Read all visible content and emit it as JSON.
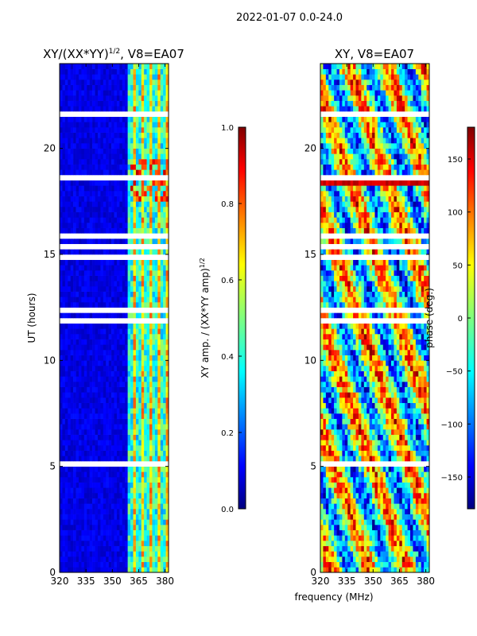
{
  "figure": {
    "suptitle": "2022-01-07 0.0-24.0",
    "shared_xlabel": "frequency (MHz)"
  },
  "chart_data": [
    {
      "type": "heatmap",
      "title_main": "XY/(XX*YY)",
      "title_sup": "1/2",
      "title_tail": ", V8=EA07",
      "xlabel": "frequency (MHz)",
      "ylabel": "UT (hours)",
      "xlim": [
        320,
        382
      ],
      "ylim": [
        0,
        24
      ],
      "xticks": [
        320,
        335,
        350,
        365,
        380
      ],
      "yticks": [
        0,
        5,
        10,
        15,
        20
      ],
      "colorbar": {
        "label_main": "XY amp. / (XX*YY amp)",
        "label_sup": "1/2",
        "range": [
          0.0,
          1.0
        ],
        "ticks": [
          "0.0",
          "0.2",
          "0.4",
          "0.6",
          "0.8",
          "1.0"
        ]
      },
      "description_bands": [
        {
          "freq": [
            320,
            358
          ],
          "level": 0.05
        },
        {
          "freq": [
            358,
            382
          ],
          "level": 0.45
        }
      ]
    },
    {
      "type": "heatmap",
      "title": "XY, V8=EA07",
      "xlabel": "frequency (MHz)",
      "ylabel": "",
      "xlim": [
        320,
        382
      ],
      "ylim": [
        0,
        24
      ],
      "xticks": [
        320,
        335,
        350,
        365,
        380
      ],
      "yticks": [
        0,
        5,
        10,
        15,
        20
      ],
      "colorbar": {
        "label": "phase (deg.)",
        "range": [
          -180,
          180
        ],
        "ticks": [
          "−150",
          "−100",
          "−50",
          "0",
          "50",
          "100",
          "150"
        ],
        "tick_values": [
          -150,
          -100,
          -50,
          0,
          50,
          100,
          150
        ]
      },
      "highlight_band_hours": [
        18.2,
        18.8
      ]
    }
  ],
  "colors": {
    "jet": [
      "#00007f",
      "#0000ff",
      "#007fff",
      "#00ffff",
      "#7fff7f",
      "#ffff00",
      "#ff7f00",
      "#ff0000",
      "#7f0000"
    ]
  }
}
